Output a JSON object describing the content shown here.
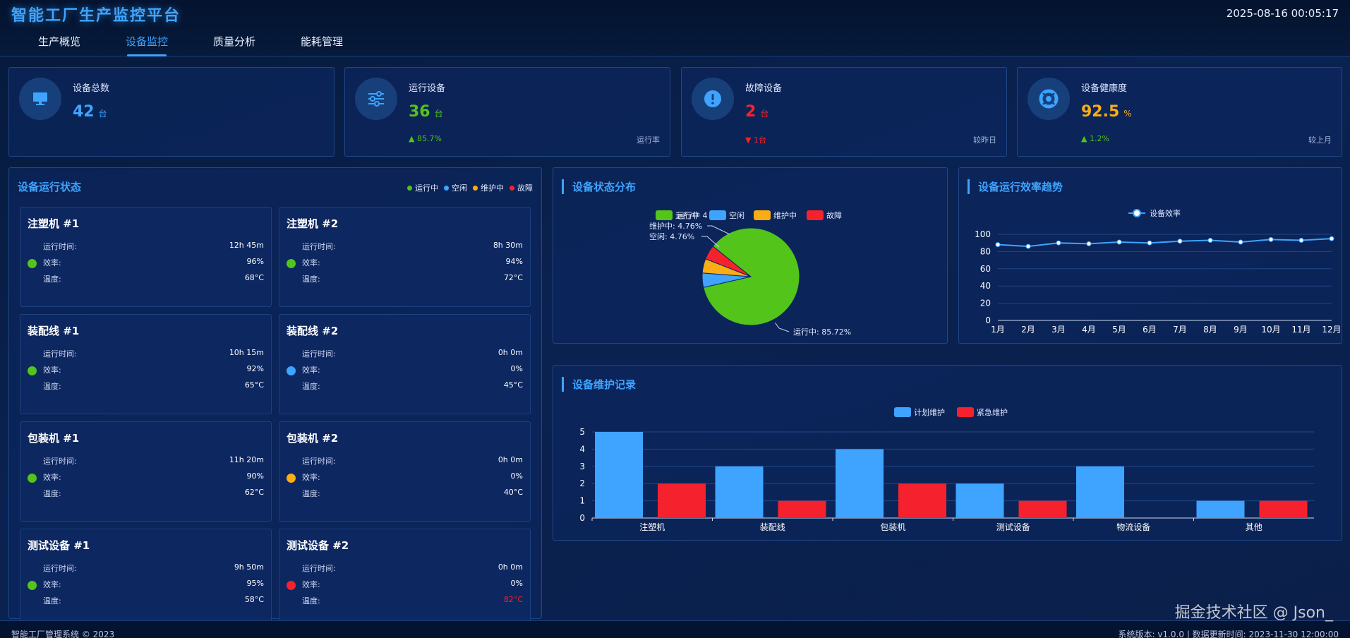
{
  "header": {
    "title": "智能工厂生产监控平台",
    "clock": "2025-08-16 00:05:17",
    "tabs": [
      {
        "label": "生产概览",
        "active": false
      },
      {
        "label": "设备监控",
        "active": true
      },
      {
        "label": "质量分析",
        "active": false
      },
      {
        "label": "能耗管理",
        "active": false
      }
    ]
  },
  "kpis": [
    {
      "label": "设备总数",
      "value": "42",
      "unit": "台",
      "color": "#3ea4ff",
      "delta": "",
      "delta_dir": "",
      "compare": "",
      "icon": "monitor-icon"
    },
    {
      "label": "运行设备",
      "value": "36",
      "unit": "台",
      "color": "#52c41a",
      "delta": "85.7%",
      "delta_dir": "up",
      "compare": "运行率",
      "icon": "sliders-icon"
    },
    {
      "label": "故障设备",
      "value": "2",
      "unit": "台",
      "color": "#f5222d",
      "delta": "1台",
      "delta_dir": "down",
      "compare": "较昨日",
      "icon": "alert-icon"
    },
    {
      "label": "设备健康度",
      "value": "92.5",
      "unit": "%",
      "color": "#faad14",
      "delta": "1.2%",
      "delta_dir": "up",
      "compare": "较上月",
      "icon": "lifebuoy-icon"
    }
  ],
  "device_panel": {
    "title": "设备运行状态",
    "legend": [
      {
        "label": "运行中",
        "color": "#52c41a"
      },
      {
        "label": "空闲",
        "color": "#3ea4ff"
      },
      {
        "label": "维护中",
        "color": "#faad14"
      },
      {
        "label": "故障",
        "color": "#f5222d"
      }
    ],
    "field_labels": {
      "runtime": "运行时间:",
      "efficiency": "效率:",
      "temperature": "温度:"
    },
    "devices": [
      {
        "name": "注塑机 #1",
        "runtime": "12h 45m",
        "efficiency": "96%",
        "temperature": "68°C",
        "status_color": "#52c41a",
        "temp_color": "#ffffff"
      },
      {
        "name": "注塑机 #2",
        "runtime": "8h 30m",
        "efficiency": "94%",
        "temperature": "72°C",
        "status_color": "#52c41a",
        "temp_color": "#ffffff"
      },
      {
        "name": "装配线 #1",
        "runtime": "10h 15m",
        "efficiency": "92%",
        "temperature": "65°C",
        "status_color": "#52c41a",
        "temp_color": "#ffffff"
      },
      {
        "name": "装配线 #2",
        "runtime": "0h 0m",
        "efficiency": "0%",
        "temperature": "45°C",
        "status_color": "#3ea4ff",
        "temp_color": "#ffffff"
      },
      {
        "name": "包装机 #1",
        "runtime": "11h 20m",
        "efficiency": "90%",
        "temperature": "62°C",
        "status_color": "#52c41a",
        "temp_color": "#ffffff"
      },
      {
        "name": "包装机 #2",
        "runtime": "0h 0m",
        "efficiency": "0%",
        "temperature": "40°C",
        "status_color": "#faad14",
        "temp_color": "#ffffff"
      },
      {
        "name": "测试设备 #1",
        "runtime": "9h 50m",
        "efficiency": "95%",
        "temperature": "58°C",
        "status_color": "#52c41a",
        "temp_color": "#ffffff"
      },
      {
        "name": "测试设备 #2",
        "runtime": "0h 0m",
        "efficiency": "0%",
        "temperature": "82°C",
        "status_color": "#f5222d",
        "temp_color": "#f5222d"
      }
    ]
  },
  "chart_data": [
    {
      "type": "pie",
      "title": "设备状态分布",
      "legend": [
        "运行中",
        "空闲",
        "维护中",
        "故障"
      ],
      "legend_overlap_text": "运行中 4",
      "colors": [
        "#52c41a",
        "#3ea4ff",
        "#faad14",
        "#f5222d"
      ],
      "values": [
        85.72,
        4.76,
        4.76,
        4.76
      ],
      "labels": [
        "运行中: 85.72%",
        "空闲: 4.76%",
        "维护中: 4.76%",
        ""
      ]
    },
    {
      "type": "line",
      "title": "设备运行效率趋势",
      "series": [
        {
          "name": "设备效率",
          "values": [
            88,
            86,
            90,
            89,
            91,
            90,
            92,
            93,
            91,
            94,
            93,
            95
          ]
        }
      ],
      "categories": [
        "1月",
        "2月",
        "3月",
        "4月",
        "5月",
        "6月",
        "7月",
        "8月",
        "9月",
        "10月",
        "11月",
        "12月"
      ],
      "yticks": [
        0,
        20,
        40,
        60,
        80,
        100
      ],
      "ylim": [
        0,
        100
      ],
      "color": "#3ea4ff"
    },
    {
      "type": "bar",
      "title": "设备维护记录",
      "categories": [
        "注塑机",
        "装配线",
        "包装机",
        "测试设备",
        "物流设备",
        "其他"
      ],
      "series": [
        {
          "name": "计划维护",
          "values": [
            5,
            3,
            4,
            2,
            3,
            1
          ],
          "color": "#3ea4ff"
        },
        {
          "name": "紧急维护",
          "values": [
            2,
            1,
            2,
            1,
            0,
            1
          ],
          "color": "#f5222d"
        }
      ],
      "yticks": [
        0,
        1,
        2,
        3,
        4,
        5
      ],
      "ylim": [
        0,
        5
      ]
    }
  ],
  "footer": {
    "left": "智能工厂管理系统 © 2023",
    "right": "系统版本: v1.0.0  |  数据更新时间: 2023-11-30 12:00:00"
  },
  "watermark": "掘金技术社区 @ Json_"
}
